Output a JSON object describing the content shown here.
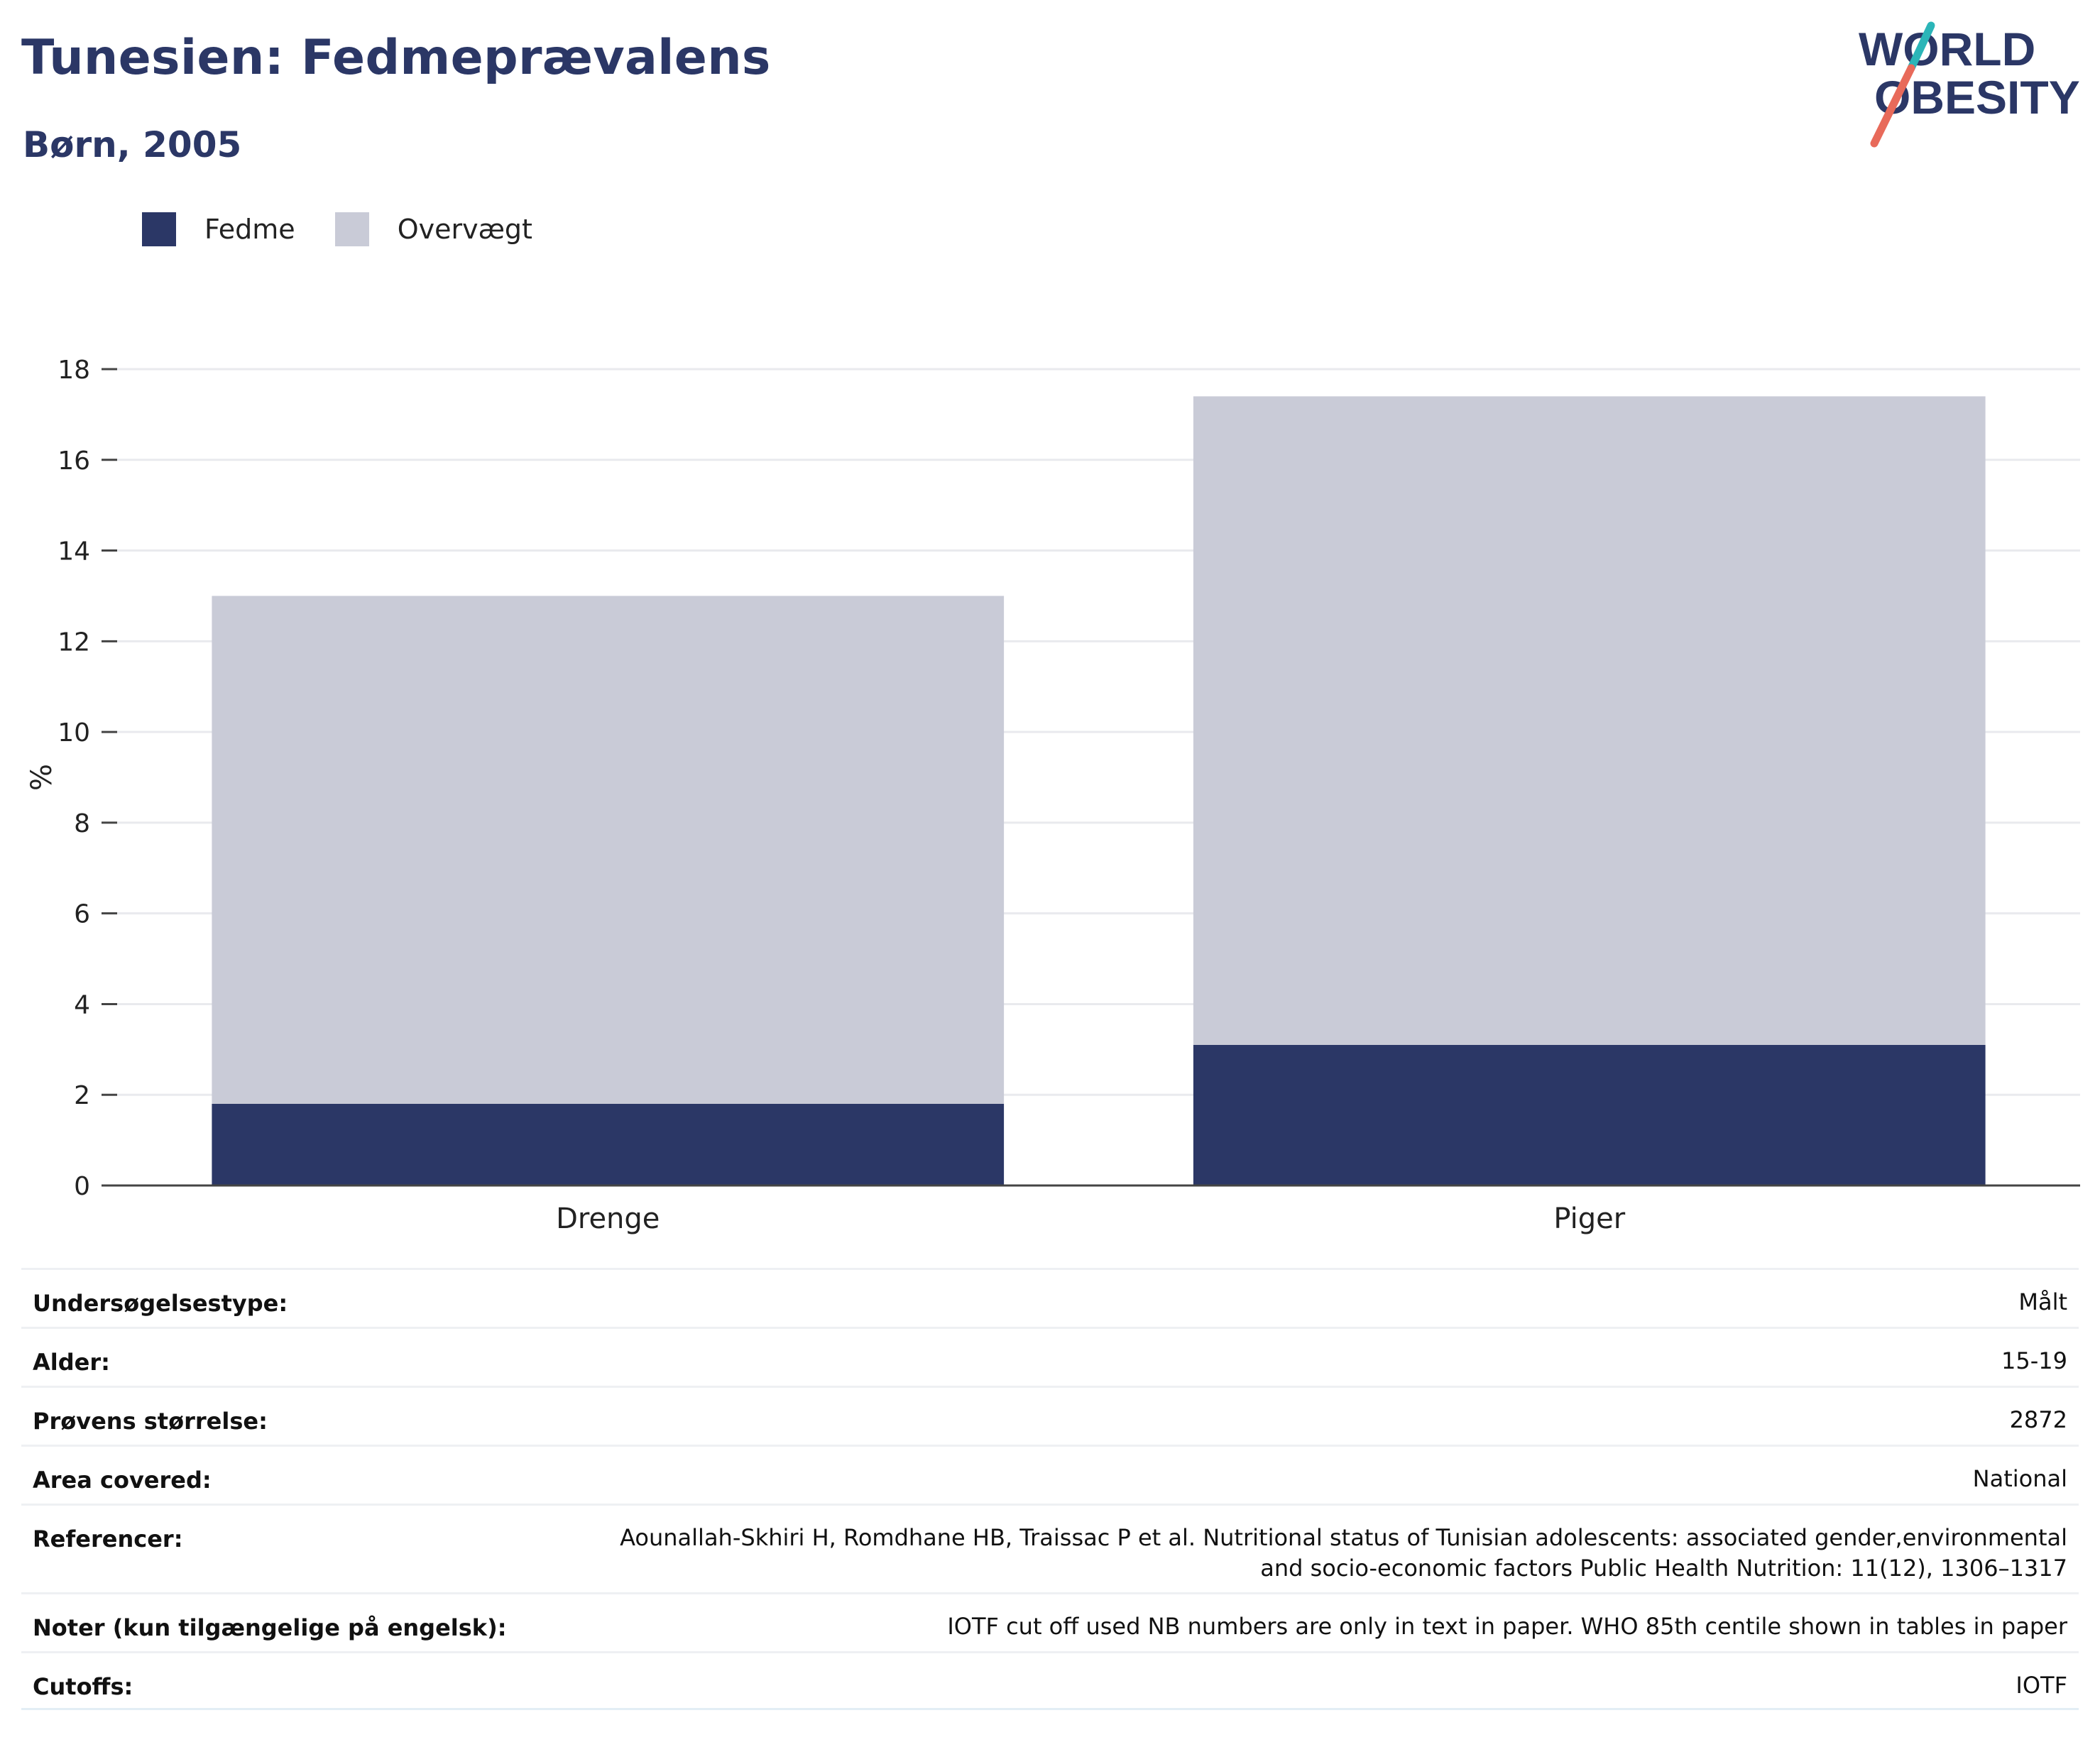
{
  "title": "Tunesien: Fedmeprævalens",
  "subtitle": "Børn, 2005",
  "logo": {
    "line1": "WORLD",
    "line2": "OBESITY"
  },
  "colors": {
    "fedme": "#2b3766",
    "overvaegt": "#c9cbd7",
    "text": "#2b3766"
  },
  "chart_data": {
    "type": "bar",
    "stacked": true,
    "categories": [
      "Drenge",
      "Piger"
    ],
    "series": [
      {
        "name": "Fedme",
        "values": [
          1.8,
          3.1
        ],
        "color": "#2b3766"
      },
      {
        "name": "Overvægt",
        "values": [
          11.2,
          14.3
        ],
        "color": "#c9cbd7"
      }
    ],
    "totals": [
      13.0,
      17.4
    ],
    "ylabel": "%",
    "xlabel": "",
    "ylim": [
      0,
      18
    ],
    "yticks": [
      0,
      2,
      4,
      6,
      8,
      10,
      12,
      14,
      16,
      18
    ],
    "grid": true,
    "legend": "top-left"
  },
  "info": [
    {
      "label": "Undersøgelsestype:",
      "value": "Målt"
    },
    {
      "label": "Alder:",
      "value": "15-19"
    },
    {
      "label": "Prøvens størrelse:",
      "value": "2872"
    },
    {
      "label": "Area covered:",
      "value": "National"
    },
    {
      "label": "Referencer:",
      "value": "Aounallah-Skhiri H, Romdhane HB, Traissac P et al. Nutritional status of Tunisian adolescents: associated gender,environmental and socio-economic factors Public Health Nutrition: 11(12), 1306–1317"
    },
    {
      "label": "Noter (kun tilgængelige på engelsk):",
      "value": "IOTF cut off used NB numbers are only in text in paper. WHO 85th centile shown in tables in paper"
    },
    {
      "label": "Cutoffs:",
      "value": "IOTF"
    }
  ]
}
